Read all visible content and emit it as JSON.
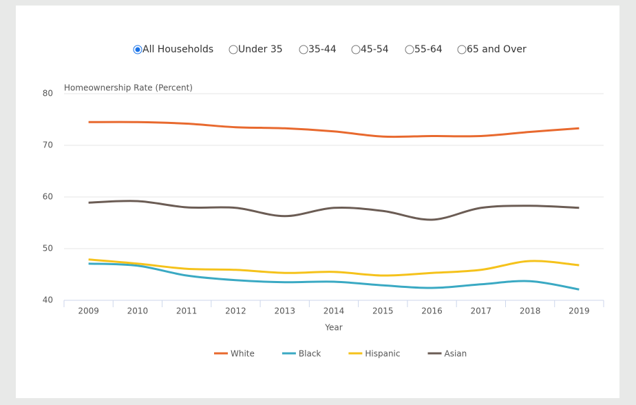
{
  "filters": {
    "options": [
      "All Households",
      "Under 35",
      "35-44",
      "45-54",
      "55-64",
      "65 and Over"
    ],
    "selected": 0
  },
  "chart_data": {
    "type": "line",
    "y_label": "Homeownership Rate (Percent)",
    "x_label": "Year",
    "categories": [
      "2009",
      "2010",
      "2011",
      "2012",
      "2013",
      "2014",
      "2015",
      "2016",
      "2017",
      "2018",
      "2019"
    ],
    "series": [
      {
        "name": "White",
        "color": "#e8692e",
        "values": [
          74.5,
          74.5,
          74.2,
          73.5,
          73.3,
          72.7,
          71.7,
          71.8,
          71.8,
          72.6,
          73.3
        ]
      },
      {
        "name": "Black",
        "color": "#3aa9c3",
        "values": [
          47.1,
          46.7,
          44.8,
          43.9,
          43.5,
          43.6,
          42.9,
          42.4,
          43.1,
          43.7,
          42.1
        ]
      },
      {
        "name": "Hispanic",
        "color": "#f5c21b",
        "values": [
          47.9,
          47.1,
          46.1,
          45.9,
          45.3,
          45.5,
          44.8,
          45.3,
          45.9,
          47.6,
          46.8
        ]
      },
      {
        "name": "Asian",
        "color": "#6b5c54",
        "values": [
          58.9,
          59.2,
          58.0,
          57.9,
          56.3,
          57.9,
          57.3,
          55.6,
          57.9,
          58.3,
          57.9
        ]
      }
    ],
    "ylim": [
      40,
      80
    ],
    "yticks": [
      40,
      50,
      60,
      70,
      80
    ],
    "grid": true,
    "legend": "bottom"
  }
}
